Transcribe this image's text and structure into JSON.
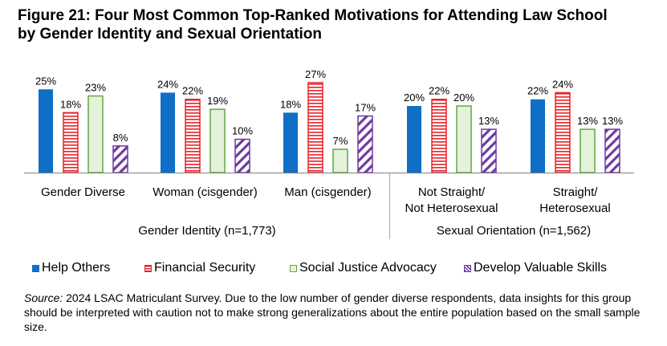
{
  "title_line1": "Figure 21: Four Most Common Top-Ranked Motivations for Attending Law School",
  "title_line2": "by Gender Identity and Sexual Orientation",
  "chart_data": {
    "type": "bar",
    "unit": "%",
    "ylim": [
      0,
      30
    ],
    "grid": false,
    "legend_position": "bottom",
    "categories": [
      "Gender Diverse",
      "Woman (cisgender)",
      "Man (cisgender)",
      "Not Straight/ Not Heterosexual",
      "Straight/ Heterosexual"
    ],
    "category_label_lines": [
      [
        "Gender Diverse"
      ],
      [
        "Woman (cisgender)"
      ],
      [
        "Man (cisgender)"
      ],
      [
        "Not Straight/",
        "Not Heterosexual"
      ],
      [
        "Straight/",
        "Heterosexual"
      ]
    ],
    "groups": [
      {
        "label": "Gender Identity (n=1,773)",
        "category_indices": [
          0,
          1,
          2
        ]
      },
      {
        "label": "Sexual Orientation (n=1,562)",
        "category_indices": [
          3,
          4
        ]
      }
    ],
    "series": [
      {
        "name": "Help Others",
        "values": [
          25,
          24,
          18,
          20,
          22
        ],
        "color": "#0f6fc6",
        "pattern": "solid"
      },
      {
        "name": "Financial Security",
        "values": [
          18,
          22,
          27,
          22,
          24
        ],
        "color": "#e8232a",
        "pattern": "striped"
      },
      {
        "name": "Social Justice Advocacy",
        "values": [
          23,
          19,
          7,
          20,
          13
        ],
        "color": "#62a744",
        "pattern": "outline"
      },
      {
        "name": "Develop Valuable Skills",
        "values": [
          8,
          10,
          17,
          13,
          13
        ],
        "color": "#6f3aa0",
        "pattern": "diagonal"
      }
    ]
  },
  "source_label": "Source:",
  "source_text": " 2024 LSAC Matriculant Survey. Due to the low number of gender diverse respondents, data insights for this group should be interpreted with caution not to make strong generalizations about the entire population based on the small sample size."
}
